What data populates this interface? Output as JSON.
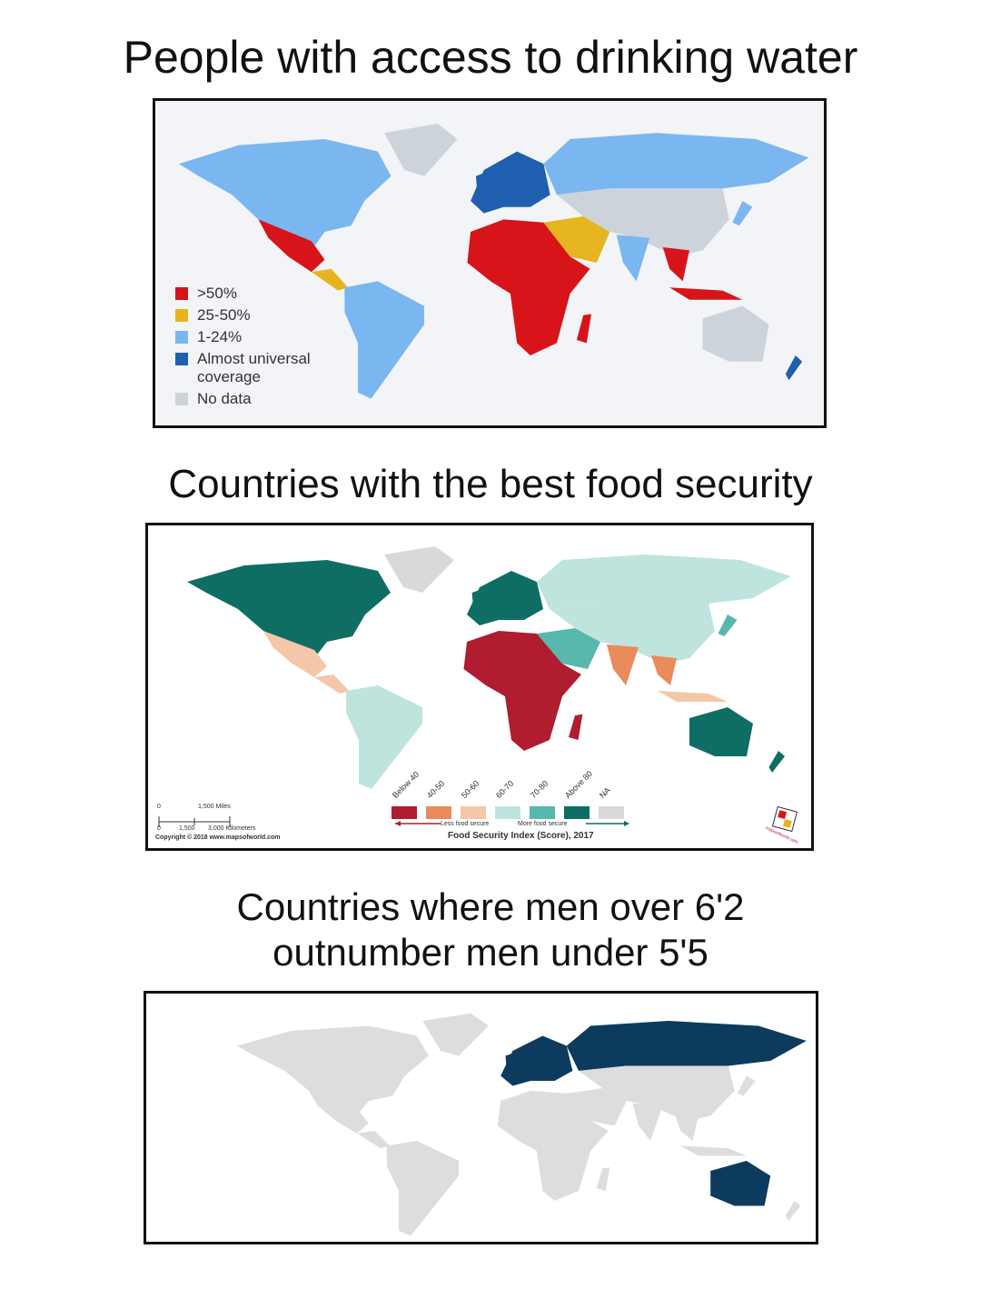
{
  "panels": [
    {
      "title": "People with access to drinking water",
      "legend": [
        {
          "label": ">50%",
          "color": "#d7141a"
        },
        {
          "label": "25-50%",
          "color": "#e6b41e"
        },
        {
          "label": "1-24%",
          "color": "#7ab6f0"
        },
        {
          "label": "Almost universal coverage",
          "color": "#1f5fb0"
        },
        {
          "label": "No data",
          "color": "#ccd3da"
        }
      ]
    },
    {
      "title": "Countries with the best food security",
      "legend": [
        {
          "label": "Below 40",
          "color": "#b01d30"
        },
        {
          "label": "40-50",
          "color": "#e98b5a"
        },
        {
          "label": "50-60",
          "color": "#f4c7a8"
        },
        {
          "label": "60-70",
          "color": "#bfe4de"
        },
        {
          "label": "70-80",
          "color": "#58b8ae"
        },
        {
          "label": "Above 80",
          "color": "#0e6e63"
        },
        {
          "label": "NA",
          "color": "#d9d9d9"
        }
      ],
      "legend_left": "Less food secure",
      "legend_right": "More food secure",
      "legend_title": "Food Security Index (Score), 2017",
      "scale": {
        "miles": [
          "0",
          "1,500 Miles"
        ],
        "kilometers": [
          "0",
          "1,500",
          "3,000 Kilometers"
        ]
      },
      "copyright": "Copyright © 2018 www.mapsofworld.com",
      "logo": "mapsofworld.com"
    },
    {
      "title_lines": [
        "Countries where men over 6'2",
        "outnumber men under 5'5"
      ]
    }
  ]
}
